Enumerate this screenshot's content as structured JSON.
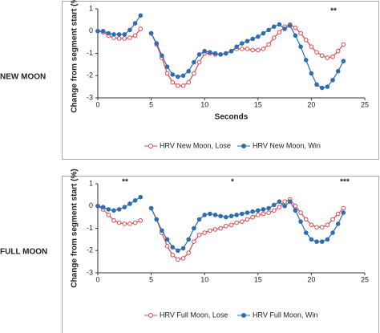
{
  "chart_data": [
    {
      "type": "line",
      "label": "NEW MOON",
      "ylabel": "Change from segment start (%)",
      "xlabel": "Seconds",
      "annotations": [
        "**"
      ],
      "x": [
        0,
        0.5,
        1,
        1.5,
        2,
        2.5,
        3,
        3.5,
        4,
        4.5,
        5,
        5.5,
        6,
        6.5,
        7,
        7.5,
        8,
        8.5,
        9,
        9.5,
        10,
        10.5,
        11,
        11.5,
        12,
        12.5,
        13,
        13.5,
        14,
        14.5,
        15,
        15.5,
        16,
        16.5,
        17,
        17.5,
        18,
        18.5,
        19,
        19.5,
        20,
        20.5,
        21,
        21.5,
        22,
        22.5,
        23
      ],
      "xlim": [
        0,
        25
      ],
      "xticks": [
        0,
        5,
        10,
        15,
        20,
        25
      ],
      "ylim": [
        -3,
        1
      ],
      "yticks": [
        1,
        0,
        -1,
        -2,
        -3
      ],
      "series": [
        {
          "name": "HRV New Moon, Lose",
          "color": "#e0474c",
          "marker": "open",
          "values": [
            0,
            -0.05,
            -0.2,
            -0.3,
            -0.33,
            -0.33,
            -0.3,
            -0.2,
            0.1,
            null,
            -0.1,
            -0.6,
            -1.2,
            -1.9,
            -2.3,
            -2.45,
            -2.45,
            -2.3,
            -1.9,
            -1.4,
            -1.0,
            -1.0,
            -1.05,
            -1.05,
            -1.0,
            -0.9,
            -0.8,
            -0.8,
            -0.8,
            -0.85,
            -0.85,
            -0.8,
            -0.6,
            -0.3,
            -0.05,
            0.2,
            0.3,
            0.15,
            -0.1,
            -0.4,
            -0.7,
            -0.95,
            -1.1,
            -1.2,
            -1.15,
            -0.9,
            -0.6
          ]
        },
        {
          "name": "HRV New Moon, Win",
          "color": "#2e6db4",
          "marker": "filled",
          "values": [
            0,
            0,
            -0.1,
            -0.15,
            -0.15,
            -0.15,
            0.05,
            0.35,
            0.7,
            null,
            -0.1,
            -0.55,
            -1.1,
            -1.6,
            -1.95,
            -2.05,
            -2.0,
            -1.8,
            -1.4,
            -1.05,
            -0.9,
            -0.95,
            -1.0,
            -1.05,
            -1.0,
            -0.9,
            -0.7,
            -0.55,
            -0.45,
            -0.35,
            -0.25,
            -0.1,
            0.05,
            0.2,
            0.3,
            0.1,
            0.25,
            -0.2,
            -0.7,
            -1.3,
            -1.9,
            -2.4,
            -2.55,
            -2.5,
            -2.2,
            -1.8,
            -1.35
          ]
        }
      ]
    },
    {
      "type": "line",
      "label": "FULL MOON",
      "ylabel": "Change from segment start (%)",
      "annotations": [
        "**",
        "*",
        "***"
      ],
      "x": [
        0,
        0.5,
        1,
        1.5,
        2,
        2.5,
        3,
        3.5,
        4,
        4.5,
        5,
        5.5,
        6,
        6.5,
        7,
        7.5,
        8,
        8.5,
        9,
        9.5,
        10,
        10.5,
        11,
        11.5,
        12,
        12.5,
        13,
        13.5,
        14,
        14.5,
        15,
        15.5,
        16,
        16.5,
        17,
        17.5,
        18,
        18.5,
        19,
        19.5,
        20,
        20.5,
        21,
        21.5,
        22,
        22.5,
        23
      ],
      "xlim": [
        0,
        25
      ],
      "xticks": [
        0,
        5,
        10,
        15,
        20,
        25
      ],
      "ylim": [
        -3,
        1
      ],
      "yticks": [
        1,
        0,
        -1,
        -2,
        -3
      ],
      "series": [
        {
          "name": "HRV Full Moon, Lose",
          "color": "#e0474c",
          "marker": "open",
          "values": [
            0,
            -0.15,
            -0.4,
            -0.65,
            -0.75,
            -0.8,
            -0.8,
            -0.75,
            -0.65,
            null,
            -0.1,
            -0.6,
            -1.2,
            -1.8,
            -2.2,
            -2.4,
            -2.35,
            -2.1,
            -1.6,
            -1.3,
            -1.2,
            -1.1,
            -1.05,
            -1.0,
            -0.9,
            -0.85,
            -0.75,
            -0.7,
            -0.6,
            -0.5,
            -0.4,
            -0.35,
            -0.3,
            -0.2,
            -0.05,
            0.2,
            0.3,
            0.0,
            -0.3,
            -0.6,
            -0.85,
            -0.95,
            -0.95,
            -0.85,
            -0.6,
            -0.35,
            -0.1
          ]
        },
        {
          "name": "HRV Full Moon, Win",
          "color": "#2e6db4",
          "marker": "filled",
          "values": [
            0,
            -0.05,
            -0.15,
            -0.2,
            -0.15,
            -0.05,
            0.1,
            0.25,
            0.4,
            null,
            -0.1,
            -0.6,
            -1.1,
            -1.5,
            -1.85,
            -2.0,
            -1.9,
            -1.5,
            -1.0,
            -0.6,
            -0.4,
            -0.35,
            -0.4,
            -0.45,
            -0.5,
            -0.45,
            -0.4,
            -0.35,
            -0.3,
            -0.25,
            -0.2,
            -0.15,
            -0.1,
            0.05,
            0.2,
            0.0,
            0.2,
            -0.2,
            -0.7,
            -1.2,
            -1.5,
            -1.6,
            -1.6,
            -1.5,
            -1.2,
            -0.8,
            -0.3
          ]
        }
      ]
    }
  ]
}
